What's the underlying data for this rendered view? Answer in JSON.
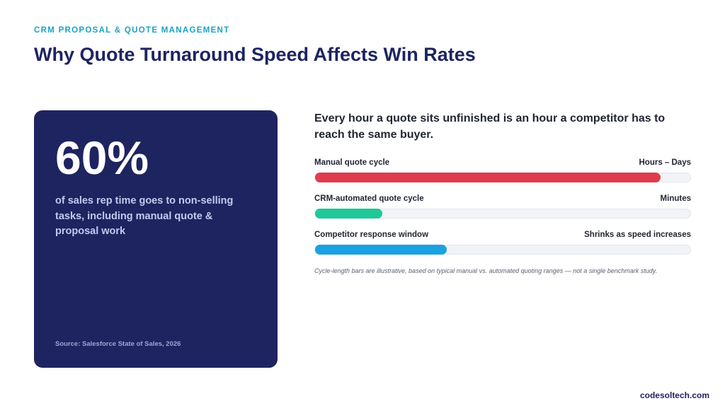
{
  "header": {
    "eyebrow": "CRM PROPOSAL & QUOTE MANAGEMENT",
    "title": "Why Quote Turnaround Speed Affects Win Rates"
  },
  "stat_card": {
    "value": "60%",
    "description": "of sales rep time goes to non-selling tasks, including manual quote & proposal work",
    "source": "Source: Salesforce State of Sales, 2026",
    "background_color": "#1e2460"
  },
  "comparison": {
    "headline": "Every hour a quote sits unfinished is an hour a competitor has to reach the same buyer.",
    "bars": [
      {
        "label": "Manual quote cycle",
        "value_text": "Hours – Days",
        "fill_fraction": 0.92,
        "color": "#e03c4f"
      },
      {
        "label": "CRM-automated quote cycle",
        "value_text": "Minutes",
        "fill_fraction": 0.18,
        "color": "#1fc99a"
      },
      {
        "label": "Competitor response window",
        "value_text": "Shrinks as speed increases",
        "fill_fraction": 0.35,
        "color": "#1aa3e0"
      }
    ],
    "footnote": "Cycle-length bars are illustrative, based on typical manual vs. automated quoting ranges — not a single benchmark study."
  },
  "footer": {
    "brand": "codesoltech.com"
  }
}
